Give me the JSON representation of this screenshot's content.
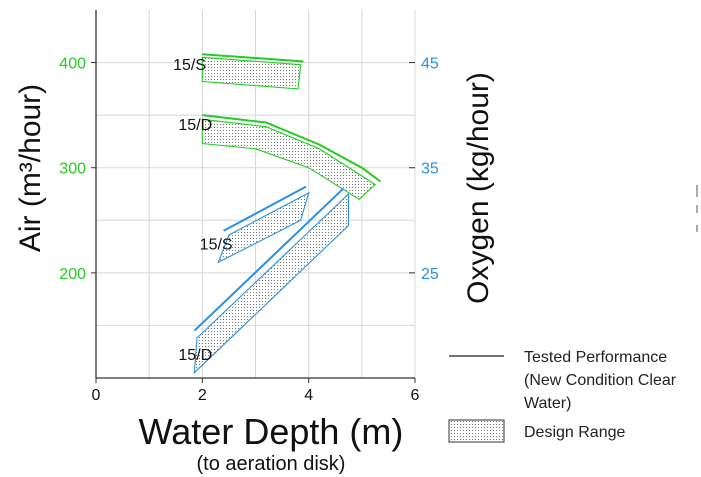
{
  "chart_data": {
    "type": "area",
    "xlabel": "Water Depth (m)",
    "xlabel_sub": "(to aeration disk)",
    "ylabel_left": "Air (m³/hour)",
    "ylabel_right": "Oxygen (kg/hour)",
    "xlim": [
      0,
      6
    ],
    "ylim": [
      100,
      450
    ],
    "x_ticks": [
      "0",
      "2",
      "4",
      "6"
    ],
    "y_ticks_left": [
      "200",
      "300",
      "400"
    ],
    "y_ticks_right": [
      "25",
      "35",
      "45"
    ],
    "grid": true,
    "colors": {
      "air": "#22cc22",
      "oxygen": "#2a8fe0",
      "axis": "#333333"
    },
    "series": [
      {
        "name": "15/S",
        "axis": "left",
        "color": "#22cc22",
        "label": "15/S",
        "label_at": [
          1.45,
          393
        ],
        "tested": [
          [
            2.0,
            408
          ],
          [
            3.9,
            401
          ]
        ],
        "design_range": [
          [
            2.0,
            405
          ],
          [
            3.85,
            398
          ],
          [
            3.8,
            375
          ],
          [
            2.0,
            382
          ]
        ]
      },
      {
        "name": "15/D",
        "axis": "left",
        "color": "#22cc22",
        "label": "15/D",
        "label_at": [
          1.55,
          336
        ],
        "tested": [
          [
            2.0,
            350
          ],
          [
            3.2,
            343
          ],
          [
            4.2,
            322
          ],
          [
            5.0,
            300
          ],
          [
            5.35,
            287
          ]
        ],
        "design_range": [
          [
            2.0,
            346
          ],
          [
            3.2,
            339
          ],
          [
            4.2,
            318
          ],
          [
            5.25,
            284
          ],
          [
            4.95,
            270
          ],
          [
            4.0,
            300
          ],
          [
            3.0,
            318
          ],
          [
            2.0,
            323
          ]
        ]
      },
      {
        "name": "15/S",
        "axis": "left",
        "color": "#2a8fe0",
        "label": "15/S",
        "label_at": [
          1.95,
          222
        ],
        "tested": [
          [
            2.4,
            240
          ],
          [
            3.95,
            282
          ]
        ],
        "design_range": [
          [
            2.5,
            236
          ],
          [
            4.0,
            276
          ],
          [
            3.85,
            250
          ],
          [
            2.3,
            210
          ]
        ]
      },
      {
        "name": "15/D",
        "axis": "left",
        "color": "#2a8fe0",
        "label": "15/D",
        "label_at": [
          1.55,
          117
        ],
        "tested": [
          [
            1.85,
            145
          ],
          [
            4.65,
            280
          ]
        ],
        "design_range": [
          [
            1.9,
            138
          ],
          [
            4.75,
            275
          ],
          [
            4.75,
            245
          ],
          [
            1.85,
            105
          ]
        ]
      }
    ],
    "legend": {
      "placement": "bottom-right",
      "tested_label": "Tested Performance (New Condition Clear Water)",
      "tested_lines": [
        "Tested Performance",
        "(New Condition Clear",
        "Water)"
      ],
      "design_label": "Design Range"
    }
  }
}
